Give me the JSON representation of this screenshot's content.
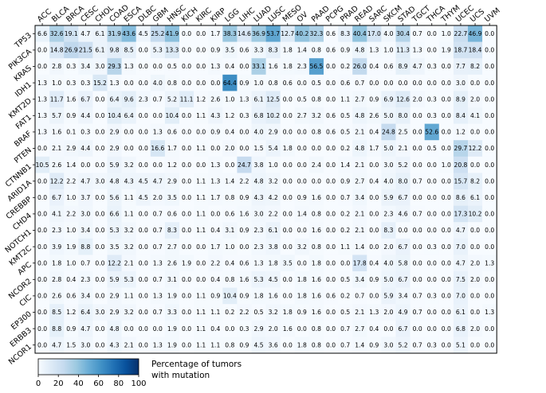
{
  "chart_data": {
    "type": "heatmap",
    "columns": [
      "ACC",
      "BLCA",
      "BRCA",
      "CESC",
      "CHOL",
      "COAD",
      "ESCA",
      "DLBC",
      "GBM",
      "HNSC",
      "KICH",
      "KIRC",
      "KIRP",
      "LGG",
      "LIHC",
      "LUAD",
      "LUSC",
      "MESO",
      "OV",
      "PAAD",
      "PCPG",
      "PRAD",
      "READ",
      "SARC",
      "SKCM",
      "STAD",
      "TGCT",
      "THCA",
      "THYM",
      "UCEC",
      "UCS",
      "UVM"
    ],
    "rows": [
      "TP53",
      "PIK3CA",
      "KRAS",
      "IDH1",
      "KMT2D",
      "FAT1",
      "BRAF",
      "PTEN",
      "CTNNB1",
      "ARID1A",
      "CREBBP",
      "CHD4",
      "NOTCH1",
      "KMT2C",
      "APC",
      "NCOR2",
      "CIC",
      "EP300",
      "ERBB3",
      "NCOR1"
    ],
    "values": [
      [
        6.6,
        32.6,
        19.1,
        4.7,
        6.1,
        31.9,
        43.6,
        4.5,
        25.2,
        41.9,
        0.0,
        0.0,
        1.7,
        38.3,
        14.6,
        36.9,
        53.7,
        12.7,
        40.2,
        32.3,
        0.6,
        8.3,
        40.4,
        17.0,
        4.0,
        30.4,
        0.7,
        0.0,
        1.0,
        22.7,
        46.9,
        0.0
      ],
      [
        0.0,
        14.8,
        26.9,
        21.5,
        6.1,
        9.8,
        8.5,
        0.0,
        5.3,
        13.3,
        0.0,
        0.0,
        0.9,
        3.5,
        0.6,
        3.3,
        8.3,
        1.8,
        1.4,
        0.8,
        0.6,
        0.9,
        4.8,
        1.3,
        1.0,
        11.3,
        1.3,
        0.0,
        1.9,
        18.7,
        18.4,
        0.0
      ],
      [
        0.0,
        2.8,
        0.3,
        3.4,
        3.0,
        29.3,
        1.3,
        0.0,
        0.0,
        0.5,
        0.0,
        0.0,
        1.3,
        0.4,
        0.0,
        33.1,
        1.6,
        1.8,
        2.3,
        56.5,
        0.0,
        0.2,
        26.0,
        0.4,
        0.6,
        8.9,
        4.7,
        0.3,
        0.0,
        7.7,
        8.2,
        0.0
      ],
      [
        1.3,
        1.0,
        0.3,
        0.3,
        15.2,
        1.3,
        0.0,
        0.0,
        4.0,
        0.8,
        0.0,
        0.0,
        0.0,
        64.4,
        0.9,
        1.0,
        0.8,
        0.6,
        0.0,
        0.5,
        0.0,
        0.6,
        0.7,
        0.0,
        0.0,
        0.0,
        0.0,
        0.0,
        0.0,
        3.0,
        0.0,
        0.0
      ],
      [
        1.3,
        11.7,
        1.6,
        6.7,
        0.0,
        6.4,
        9.6,
        2.3,
        0.7,
        5.2,
        11.1,
        1.2,
        2.6,
        1.0,
        1.3,
        6.1,
        12.5,
        0.0,
        0.5,
        0.8,
        0.0,
        1.1,
        2.7,
        0.9,
        6.9,
        12.6,
        2.0,
        0.3,
        0.0,
        8.9,
        2.0,
        0.0
      ],
      [
        1.3,
        5.7,
        0.9,
        4.4,
        0.0,
        10.4,
        6.4,
        0.0,
        0.0,
        10.4,
        0.0,
        1.1,
        4.3,
        1.2,
        0.3,
        6.8,
        10.2,
        0.0,
        2.7,
        3.2,
        0.6,
        0.5,
        4.8,
        2.6,
        5.0,
        8.0,
        0.0,
        0.3,
        0.0,
        8.4,
        4.1,
        0.0
      ],
      [
        1.3,
        1.6,
        0.1,
        0.3,
        0.0,
        2.9,
        0.0,
        0.0,
        1.3,
        0.6,
        0.0,
        0.0,
        0.9,
        0.4,
        0.0,
        4.0,
        2.9,
        0.0,
        0.0,
        0.8,
        0.6,
        0.5,
        2.1,
        0.4,
        24.8,
        2.5,
        0.0,
        52.6,
        0.0,
        1.2,
        0.0,
        0.0
      ],
      [
        0.0,
        2.1,
        2.9,
        4.4,
        0.0,
        2.9,
        0.0,
        0.0,
        16.6,
        1.7,
        0.0,
        1.1,
        0.0,
        2.0,
        0.0,
        1.5,
        5.4,
        1.8,
        0.0,
        0.0,
        0.0,
        0.2,
        4.8,
        1.7,
        5.0,
        2.1,
        0.0,
        0.5,
        0.0,
        29.7,
        12.2,
        0.0
      ],
      [
        10.5,
        2.6,
        1.4,
        0.0,
        0.0,
        5.9,
        3.2,
        0.0,
        0.0,
        1.2,
        0.0,
        0.0,
        1.3,
        0.0,
        24.7,
        3.8,
        1.0,
        0.0,
        0.0,
        2.4,
        0.0,
        1.4,
        2.1,
        0.0,
        3.0,
        5.2,
        0.0,
        0.0,
        1.0,
        20.8,
        0.0,
        0.0
      ],
      [
        0.0,
        12.2,
        2.2,
        4.7,
        3.0,
        4.8,
        4.3,
        4.5,
        4.7,
        2.9,
        0.0,
        1.1,
        1.3,
        1.4,
        2.2,
        4.8,
        3.2,
        0.0,
        0.0,
        0.0,
        0.0,
        0.9,
        2.7,
        0.4,
        4.0,
        8.0,
        0.7,
        0.0,
        0.0,
        15.7,
        8.2,
        0.0
      ],
      [
        0.0,
        6.7,
        1.0,
        3.7,
        0.0,
        5.6,
        1.1,
        4.5,
        2.0,
        3.5,
        0.0,
        1.1,
        1.7,
        0.8,
        0.9,
        4.3,
        4.2,
        0.0,
        0.9,
        1.6,
        0.0,
        0.7,
        3.4,
        0.0,
        5.9,
        6.7,
        0.0,
        0.0,
        0.0,
        8.6,
        6.1,
        0.0
      ],
      [
        0.0,
        4.1,
        2.2,
        3.0,
        0.0,
        6.6,
        1.1,
        0.0,
        0.7,
        0.6,
        0.0,
        1.1,
        0.0,
        0.6,
        1.6,
        3.0,
        2.2,
        0.0,
        1.4,
        0.8,
        0.0,
        0.2,
        2.1,
        0.0,
        2.3,
        4.6,
        0.7,
        0.0,
        0.0,
        17.3,
        10.2,
        0.0
      ],
      [
        0.0,
        2.3,
        1.0,
        3.4,
        0.0,
        5.3,
        3.2,
        0.0,
        0.7,
        8.3,
        0.0,
        1.1,
        0.4,
        3.1,
        0.9,
        2.3,
        6.1,
        0.0,
        0.0,
        1.6,
        0.0,
        0.2,
        2.1,
        0.0,
        8.3,
        0.0,
        0.0,
        0.0,
        0.0,
        4.7,
        0.0,
        0.0
      ],
      [
        0.0,
        3.9,
        1.9,
        8.8,
        0.0,
        3.5,
        3.2,
        0.0,
        0.7,
        2.7,
        0.0,
        0.0,
        1.7,
        1.0,
        0.0,
        2.3,
        3.8,
        0.0,
        3.2,
        0.8,
        0.0,
        1.1,
        1.4,
        0.0,
        2.0,
        6.7,
        0.0,
        0.3,
        0.0,
        7.0,
        0.0,
        0.0
      ],
      [
        0.0,
        1.8,
        1.0,
        0.7,
        0.0,
        12.2,
        2.1,
        0.0,
        1.3,
        2.6,
        1.9,
        0.0,
        2.2,
        0.4,
        0.6,
        1.3,
        1.8,
        3.5,
        0.0,
        1.8,
        0.0,
        0.0,
        17.8,
        0.4,
        4.0,
        5.8,
        0.0,
        0.0,
        0.0,
        4.7,
        2.0,
        1.3
      ],
      [
        0.0,
        2.8,
        0.4,
        2.3,
        0.0,
        5.9,
        5.3,
        0.0,
        0.7,
        3.1,
        0.0,
        0.0,
        0.4,
        0.8,
        1.6,
        5.3,
        4.5,
        0.0,
        1.8,
        1.6,
        0.0,
        0.5,
        3.4,
        0.9,
        5.0,
        6.7,
        0.0,
        0.0,
        0.0,
        7.5,
        2.0,
        0.0
      ],
      [
        0.0,
        2.6,
        0.6,
        3.4,
        0.0,
        2.9,
        1.1,
        0.0,
        1.3,
        1.9,
        0.0,
        1.1,
        0.9,
        10.4,
        0.9,
        1.8,
        1.6,
        0.0,
        1.8,
        1.6,
        0.6,
        0.2,
        0.7,
        0.0,
        5.9,
        3.4,
        0.7,
        0.3,
        0.0,
        7.0,
        0.0,
        0.0
      ],
      [
        0.0,
        8.5,
        1.2,
        6.4,
        3.0,
        2.9,
        3.2,
        0.0,
        0.7,
        3.3,
        0.0,
        1.1,
        1.1,
        0.2,
        2.2,
        0.5,
        3.2,
        1.8,
        0.9,
        1.6,
        0.0,
        0.5,
        2.1,
        1.3,
        2.0,
        4.9,
        0.7,
        0.0,
        0.0,
        6.1,
        0.0,
        1.3
      ],
      [
        0.0,
        8.8,
        0.9,
        4.7,
        0.0,
        4.8,
        0.0,
        0.0,
        0.0,
        1.9,
        0.0,
        1.1,
        0.4,
        0.0,
        0.3,
        2.9,
        2.0,
        1.6,
        0.0,
        0.8,
        0.0,
        0.7,
        2.7,
        0.4,
        0.0,
        6.7,
        0.0,
        0.0,
        0.0,
        6.8,
        2.0,
        0.0
      ],
      [
        0.0,
        4.7,
        1.5,
        3.0,
        0.0,
        4.3,
        2.1,
        0.0,
        1.3,
        1.9,
        0.0,
        1.1,
        1.1,
        0.8,
        0.9,
        4.5,
        3.6,
        0.0,
        1.8,
        0.8,
        0.0,
        0.7,
        1.4,
        0.9,
        3.0,
        5.2,
        0.7,
        0.3,
        0.0,
        5.1,
        0.0,
        0.0
      ]
    ],
    "colorbar": {
      "label": "Percentage of tumors\nwith mutation",
      "range": [
        0,
        100
      ],
      "ticks": [
        0,
        20,
        40,
        60,
        80,
        100
      ]
    }
  }
}
